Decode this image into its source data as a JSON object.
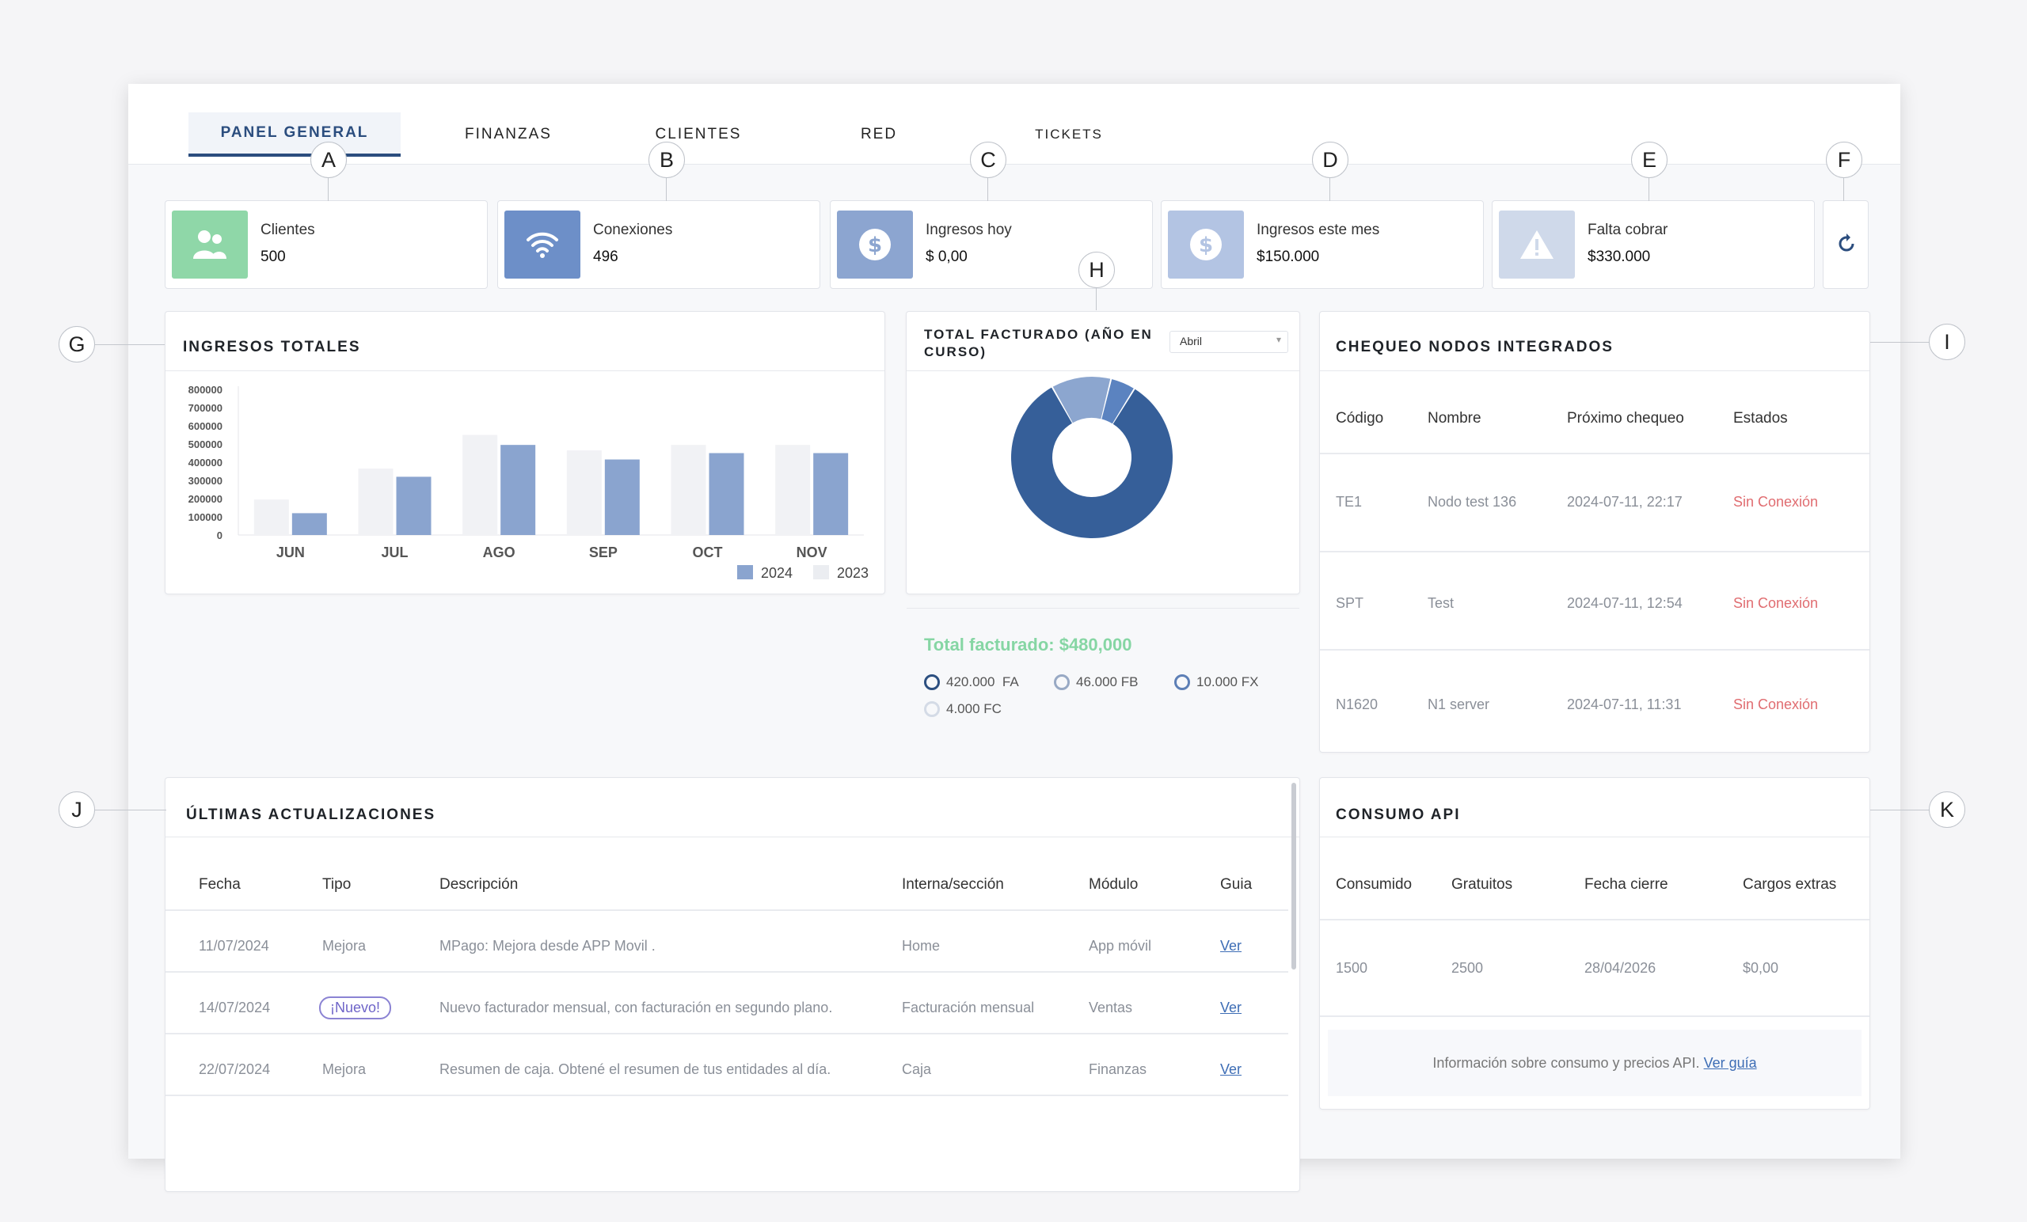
{
  "tabs": [
    {
      "label": "PANEL GENERAL",
      "active": true
    },
    {
      "label": "FINANZAS"
    },
    {
      "label": "CLIENTES"
    },
    {
      "label": "RED"
    },
    {
      "label": "TICKETS"
    }
  ],
  "stats": [
    {
      "label": "Clientes",
      "value": "500",
      "icon": "users-icon",
      "color": "#8fd7a8"
    },
    {
      "label": "Conexiones",
      "value": "496",
      "icon": "wifi-icon",
      "color": "#6d8fc8"
    },
    {
      "label": "Ingresos hoy",
      "value": "$ 0,00",
      "icon": "dollar-icon",
      "color": "#8ca5d0"
    },
    {
      "label": "Ingresos este mes",
      "value": "$150.000",
      "icon": "dollar-icon",
      "color": "#b3c4e3"
    },
    {
      "label": "Falta cobrar",
      "value": "$330.000",
      "icon": "warning-icon",
      "color": "#cfd9ea"
    }
  ],
  "refresh_icon": "refresh-icon",
  "callouts": [
    "A",
    "B",
    "C",
    "D",
    "E",
    "F",
    "G",
    "H",
    "I",
    "J",
    "K"
  ],
  "ingresos": {
    "title": "INGRESOS TOTALES",
    "chart_data": {
      "type": "bar",
      "categories": [
        "JUN",
        "JUL",
        "AGO",
        "SEP",
        "OCT",
        "NOV"
      ],
      "series": [
        {
          "name": "2024",
          "values": [
            120000,
            320000,
            495000,
            415000,
            450000,
            450000
          ],
          "color": "#8aa4cf"
        },
        {
          "name": "2023",
          "values": [
            195000,
            365000,
            550000,
            465000,
            495000,
            495000
          ],
          "color": "#f1f2f5"
        }
      ],
      "yticks": [
        "800000",
        "700000",
        "600000",
        "500000",
        "400000",
        "300000",
        "200000",
        "100000",
        "0"
      ],
      "ylim": [
        0,
        800000
      ],
      "legend": "bottom-right"
    }
  },
  "facturado": {
    "title": "TOTAL FACTURADO (AÑO EN CURSO)",
    "select": "Abril",
    "total": "Total facturado: $480,000",
    "chart_data": {
      "type": "pie",
      "slices": [
        {
          "label": "420.000  FA",
          "value": 420000,
          "color": "#365f99"
        },
        {
          "label": "46.000 FB",
          "value": 46000,
          "color": "#8ca6cf"
        },
        {
          "label": "10.000 FX",
          "value": 10000,
          "color": "#5b83c0"
        },
        {
          "label": "4.000 FC",
          "value": 4000,
          "color": "#d3dcea"
        }
      ]
    },
    "legend_ring_colors": [
      "#2c4f80",
      "#98a9c4",
      "#5d7fb6",
      "#d4dbe6"
    ]
  },
  "nodos": {
    "title": "CHEQUEO NODOS INTEGRADOS",
    "headers": [
      "Código",
      "Nombre",
      "Próximo chequeo",
      "Estados"
    ],
    "rows": [
      [
        "TE1",
        "Nodo test 136",
        "2024-07-11, 22:17",
        "Sin Conexión"
      ],
      [
        "SPT",
        "Test",
        "2024-07-11, 12:54",
        "Sin Conexión"
      ],
      [
        "N1620",
        "N1 server",
        "2024-07-11, 11:31",
        "Sin Conexión"
      ]
    ]
  },
  "actualizaciones": {
    "title": "ÚLTIMAS ACTUALIZACIONES",
    "headers": [
      "Fecha",
      "Tipo",
      "Descripción",
      "Interna/sección",
      "Módulo",
      "Guia"
    ],
    "rows": [
      [
        "11/07/2024",
        "Mejora",
        "MPago: Mejora desde APP Movil .",
        "Home",
        "App móvil",
        "Ver"
      ],
      [
        "14/07/2024",
        "¡Nuevo!",
        "Nuevo facturador mensual, con facturación en segundo plano.",
        "Facturación mensual",
        "Ventas",
        "Ver"
      ],
      [
        "22/07/2024",
        "Mejora",
        "Resumen de caja. Obtené el resumen de tus entidades al día.",
        "Caja",
        "Finanzas",
        "Ver"
      ]
    ]
  },
  "api": {
    "title": "CONSUMO API",
    "headers": [
      "Consumido",
      "Gratuitos",
      "Fecha cierre",
      "Cargos extras"
    ],
    "row": [
      "1500",
      "2500",
      "28/04/2026",
      "$0,00"
    ],
    "info": "Información sobre consumo y precios API.",
    "info_link": "Ver guía"
  }
}
